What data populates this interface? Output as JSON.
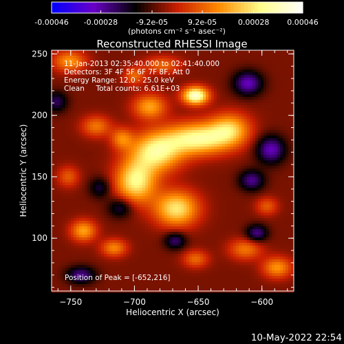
{
  "chart_data": {
    "type": "heatmap",
    "title": "Reconstructed RHESSI Image",
    "xlabel": "Heliocentric X (arcsec)",
    "ylabel": "Heliocentric Y (arcsec)",
    "xlim": [
      -765,
      -575
    ],
    "ylim": [
      57,
      253
    ],
    "x_ticks": [
      -750,
      -700,
      -650,
      -600
    ],
    "y_ticks": [
      100,
      150,
      200,
      250
    ],
    "colorbar": {
      "ticks": [
        -0.00046,
        -0.00028,
        -9.2e-05,
        9.2e-05,
        0.00028,
        0.00046
      ],
      "tick_labels": [
        "-0.00046",
        "-0.00028",
        "-9.2e-05",
        "9.2e-05",
        "0.00028",
        "0.00046"
      ],
      "range": [
        -0.00046,
        0.00046
      ],
      "unit_label": "(photons cm⁻² s⁻¹ asec⁻²)"
    },
    "info_lines": [
      "11-Jan-2013 02:35:40.000 to 02:41:40.000",
      "Detectors: 3F 4F 5F 6F 7F 8F, Att 0",
      "Energy Range: 12.0 - 25.0 keV",
      "Clean     Total counts: 6.61E+03"
    ],
    "peak_text": "Position of Peak = [-652,216]",
    "peak_position": [
      -652,
      216
    ],
    "colormap": [
      "#0000ff",
      "#6a00c8",
      "#000000",
      "#c81e00",
      "#ff8c00",
      "#ffff8c",
      "#ffffff"
    ],
    "blobs": [
      {
        "x": -683,
        "y": 170,
        "sx": 14,
        "sy": 11,
        "a": 0.00036
      },
      {
        "x": -650,
        "y": 181,
        "sx": 18,
        "sy": 9,
        "a": 0.00038
      },
      {
        "x": -625,
        "y": 189,
        "sx": 11,
        "sy": 9,
        "a": 0.00026
      },
      {
        "x": -699,
        "y": 146,
        "sx": 11,
        "sy": 12,
        "a": 0.00036
      },
      {
        "x": -667,
        "y": 124,
        "sx": 12,
        "sy": 10,
        "a": 0.00034
      },
      {
        "x": -652,
        "y": 216,
        "sx": 7,
        "sy": 5,
        "a": 0.00046
      },
      {
        "x": -688,
        "y": 207,
        "sx": 9,
        "sy": 7,
        "a": 0.00024
      },
      {
        "x": -700,
        "y": 232,
        "sx": 6,
        "sy": 5,
        "a": 0.00016
      },
      {
        "x": -730,
        "y": 191,
        "sx": 8,
        "sy": 6,
        "a": 0.00018
      },
      {
        "x": -751,
        "y": 244,
        "sx": 9,
        "sy": 6,
        "a": 0.00022
      },
      {
        "x": -678,
        "y": 241,
        "sx": 10,
        "sy": 5,
        "a": 0.00016
      },
      {
        "x": -740,
        "y": 106,
        "sx": 7,
        "sy": 6,
        "a": 0.00024
      },
      {
        "x": -716,
        "y": 92,
        "sx": 7,
        "sy": 5,
        "a": 0.0002
      },
      {
        "x": -752,
        "y": 150,
        "sx": 6,
        "sy": 6,
        "a": 0.00014
      },
      {
        "x": -613,
        "y": 91,
        "sx": 9,
        "sy": 6,
        "a": 0.00018
      },
      {
        "x": -588,
        "y": 76,
        "sx": 8,
        "sy": 6,
        "a": 0.00022
      },
      {
        "x": -652,
        "y": 83,
        "sx": 7,
        "sy": 5,
        "a": 0.00016
      },
      {
        "x": -596,
        "y": 126,
        "sx": 6,
        "sy": 5,
        "a": 0.00014
      },
      {
        "x": -710,
        "y": 181,
        "sx": 6,
        "sy": 6,
        "a": 0.00018
      },
      {
        "x": -608,
        "y": 147,
        "sx": 7,
        "sy": 6,
        "a": -0.0002
      },
      {
        "x": -593,
        "y": 172,
        "sx": 8,
        "sy": 8,
        "a": -0.00024
      },
      {
        "x": -611,
        "y": 226,
        "sx": 8,
        "sy": 7,
        "a": -0.00024
      },
      {
        "x": -742,
        "y": 70,
        "sx": 8,
        "sy": 5,
        "a": -0.0002
      },
      {
        "x": -604,
        "y": 104,
        "sx": 6,
        "sy": 5,
        "a": -0.0002
      },
      {
        "x": -761,
        "y": 211,
        "sx": 6,
        "sy": 6,
        "a": -0.00016
      },
      {
        "x": -711,
        "y": 125,
        "sx": 7,
        "sy": 6,
        "a": -0.00016
      },
      {
        "x": -668,
        "y": 98,
        "sx": 6,
        "sy": 5,
        "a": -0.00018
      },
      {
        "x": -727,
        "y": 141,
        "sx": 6,
        "sy": 6,
        "a": -0.00014
      }
    ]
  },
  "footer": {
    "date": "10-May-2022 22:54"
  }
}
